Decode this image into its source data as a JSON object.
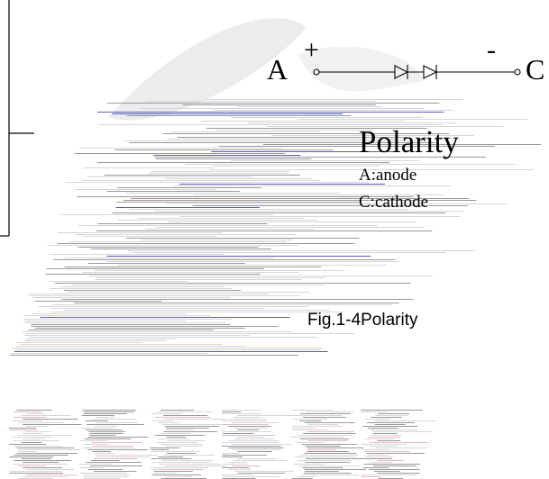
{
  "diagram": {
    "terminal_a": "A",
    "terminal_c": "C",
    "plus_sign": "+",
    "minus_sign": "-",
    "polarity_title": "Polarity",
    "anode_label": "A:anode",
    "cathode_label": "C:cathode",
    "figure_caption": "Fig.1-4Polarity"
  },
  "colors": {
    "ink": "#000000",
    "artifact_gray": "#9a9a9a",
    "artifact_light": "#d6d6d6",
    "artifact_blue": "#5b5fb8",
    "artifact_pink": "#e7b9c8"
  }
}
